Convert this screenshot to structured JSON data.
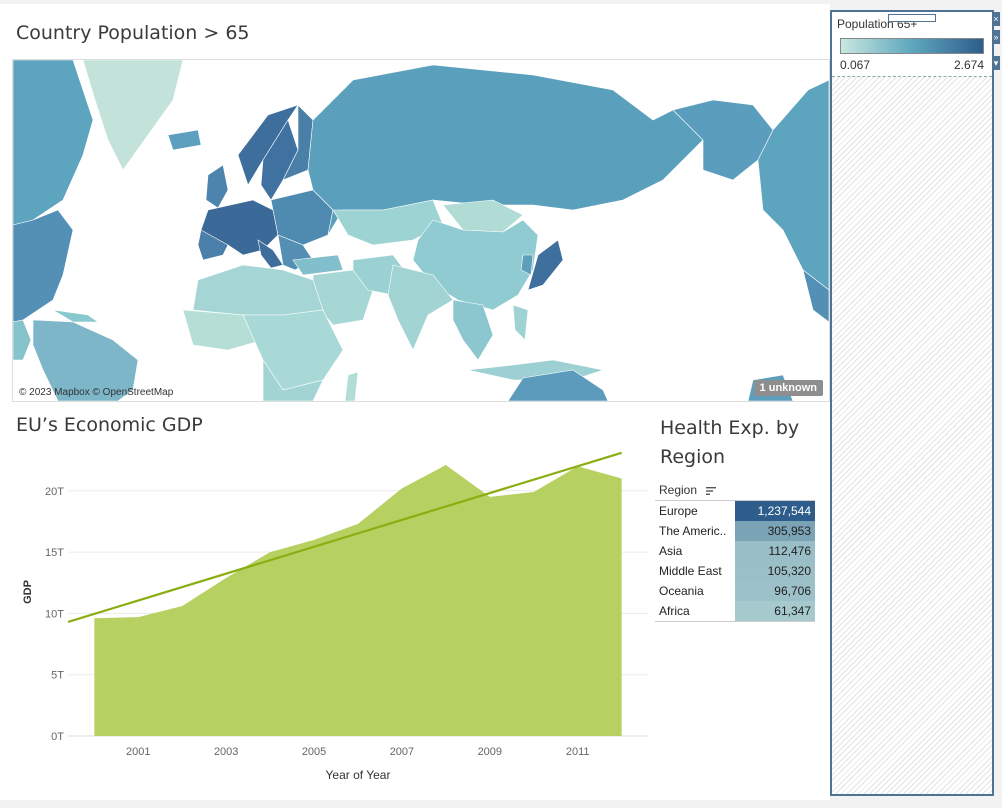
{
  "map": {
    "title": "Country Population > 65",
    "attribution": "© 2023 Mapbox © OpenStreetMap",
    "unknown_badge": "1 unknown"
  },
  "legend": {
    "title": "Population 65+",
    "min": "0.067",
    "max": "2.674",
    "colors": {
      "low": "#c9e7e0",
      "mid": "#5ea7bd",
      "high": "#2e5d8c"
    }
  },
  "gdp": {
    "title": "EU’s Economic GDP"
  },
  "health": {
    "title_line1": "Health Exp. by",
    "title_line2": "Region",
    "column_header": "Region",
    "rows": [
      {
        "region": "Europe",
        "value": "1,237,544",
        "num": 1237544
      },
      {
        "region": "The Americ..",
        "value": "305,953",
        "num": 305953
      },
      {
        "region": "Asia",
        "value": "112,476",
        "num": 112476
      },
      {
        "region": "Middle East",
        "value": "105,320",
        "num": 105320
      },
      {
        "region": "Oceania",
        "value": "96,706",
        "num": 96706
      },
      {
        "region": "Africa",
        "value": "61,347",
        "num": 61347
      }
    ]
  },
  "chart_data": {
    "type": "area",
    "title": "EU’s Economic GDP",
    "xlabel": "Year of Year",
    "ylabel": "GDP",
    "x": [
      2000,
      2001,
      2002,
      2003,
      2004,
      2005,
      2006,
      2007,
      2008,
      2009,
      2010,
      2011,
      2012
    ],
    "series": [
      {
        "name": "GDP",
        "values": [
          9.6,
          9.7,
          10.6,
          12.9,
          15.0,
          16.0,
          17.3,
          20.2,
          22.1,
          19.5,
          19.9,
          22.0,
          21.0
        ]
      }
    ],
    "trend_line": {
      "start": [
        1999.4,
        9.3
      ],
      "end": [
        2012.0,
        23.1
      ]
    },
    "x_ticks": [
      "2001",
      "2003",
      "2005",
      "2007",
      "2009",
      "2011"
    ],
    "y_ticks": [
      "0T",
      "5T",
      "10T",
      "15T",
      "20T"
    ],
    "ylim": [
      0,
      23
    ],
    "xlim": [
      1999.4,
      2012.6
    ],
    "colors": {
      "area": "#b6d161",
      "trend": "#8aae12"
    }
  }
}
